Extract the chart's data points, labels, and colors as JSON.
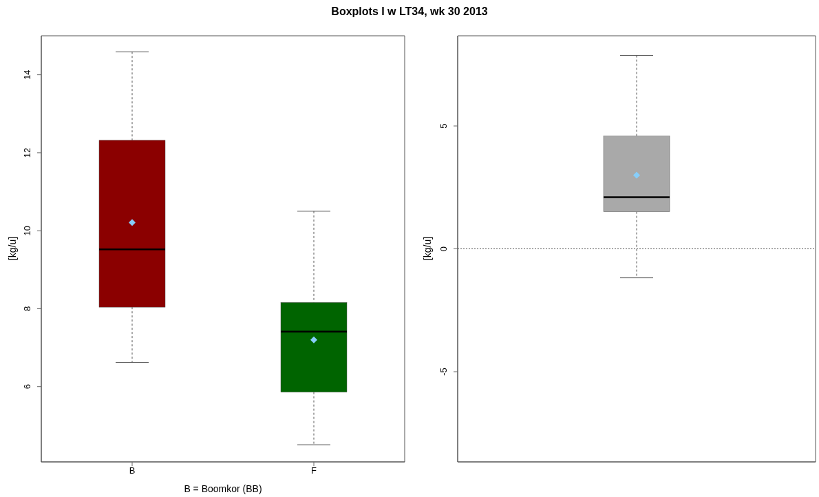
{
  "chart_data": [
    {
      "type": "box",
      "title": "Boxplots I w LT34, wk 30 2013",
      "ylabel": "[kg/u]",
      "xlabel": "B = Boomkor (BB)",
      "categories": [
        "B",
        "F"
      ],
      "colors": [
        "#8b0000",
        "#006400"
      ],
      "marker": "diamond",
      "boxes": [
        {
          "low": 6.62,
          "q1": 8.04,
          "median": 9.52,
          "q3": 12.32,
          "high": 14.59,
          "mean": 10.21
        },
        {
          "low": 4.51,
          "q1": 5.86,
          "median": 7.41,
          "q3": 8.16,
          "high": 10.5,
          "mean": 7.2
        }
      ],
      "ylim": [
        4.07,
        15
      ],
      "yticks": [
        6,
        8,
        10,
        12,
        14
      ]
    },
    {
      "type": "box",
      "ylabel": "[kg/u]",
      "categories": [
        null
      ],
      "colors": [
        "#a9a9a9"
      ],
      "marker": "diamond",
      "boxes": [
        {
          "low": -1.18,
          "q1": 1.51,
          "median": 2.1,
          "q3": 4.59,
          "high": 7.87,
          "mean": 3.0
        }
      ],
      "ylim": [
        -8.67,
        8.67
      ],
      "yticks": [
        -5,
        0,
        5
      ],
      "tick_labels": "y",
      "ref_lines": [
        {
          "axis": "y",
          "value": 0,
          "color": "#555555",
          "line_style": "dotted"
        }
      ]
    }
  ]
}
